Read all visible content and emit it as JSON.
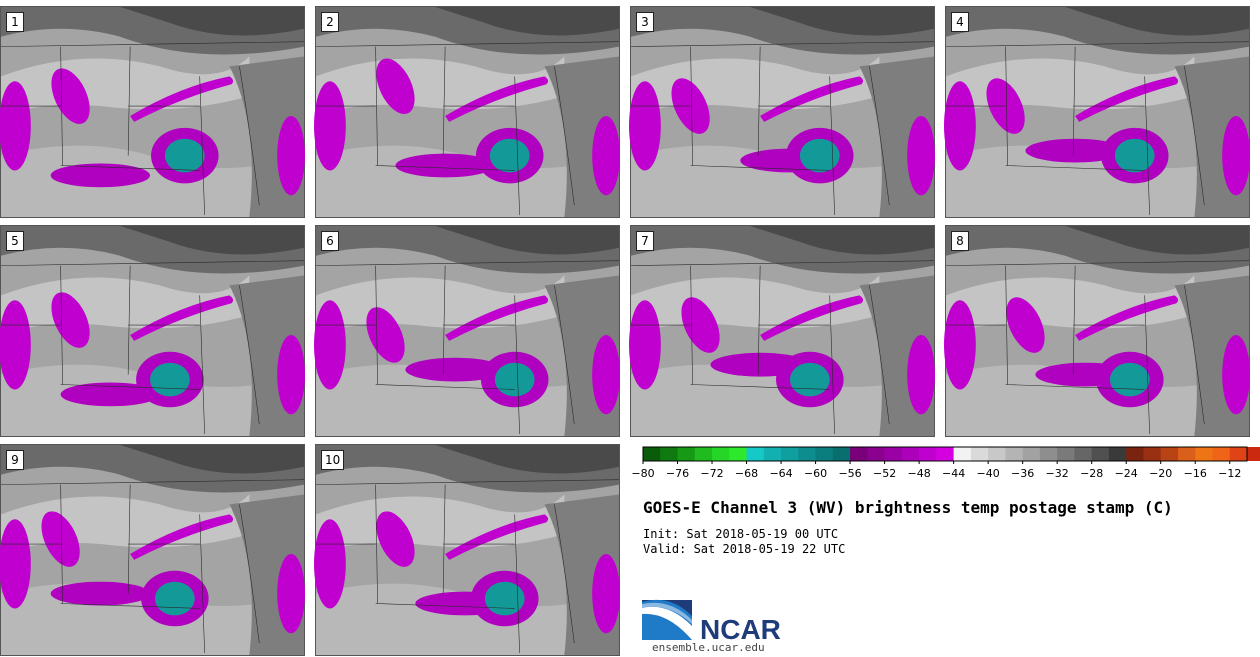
{
  "chart_data": {
    "type": "heatmap",
    "title": "GOES-E Channel 3 (WV) brightness temp postage stamp (C)",
    "init": "Init: Sat 2018-05-19 00 UTC",
    "valid": "Valid: Sat 2018-05-19 22 UTC",
    "units": "C",
    "members": [
      "1",
      "2",
      "3",
      "4",
      "5",
      "6",
      "7",
      "8",
      "9",
      "10"
    ],
    "colorbar": {
      "min": -80,
      "max": -10,
      "step": 2,
      "tick_labels": [
        "−80",
        "−76",
        "−72",
        "−68",
        "−64",
        "−60",
        "−56",
        "−52",
        "−48",
        "−44",
        "−40",
        "−36",
        "−32",
        "−28",
        "−24",
        "−20",
        "−16",
        "−12"
      ],
      "tick_values": [
        -80,
        -76,
        -72,
        -68,
        -64,
        -60,
        -56,
        -52,
        -48,
        -44,
        -40,
        -36,
        -32,
        -28,
        -24,
        -20,
        -16,
        -12
      ],
      "colors": [
        "#0a5c0a",
        "#0f7a0f",
        "#169a16",
        "#1fbb1f",
        "#26d626",
        "#2ee82e",
        "#15c9c9",
        "#12b0b0",
        "#0f9f9f",
        "#0d8d8d",
        "#0a7e7e",
        "#086e6e",
        "#7a007a",
        "#8a008f",
        "#9a00a6",
        "#ad00bb",
        "#c000cf",
        "#d400e0",
        "#f2f2f2",
        "#dadada",
        "#c8c8c8",
        "#b4b4b4",
        "#a2a2a2",
        "#8e8e8e",
        "#7a7a7a",
        "#666666",
        "#505050",
        "#3a3a3a",
        "#7a2410",
        "#9a3012",
        "#b84416",
        "#d8601a",
        "#ee7416",
        "#f06418",
        "#e04416",
        "#cc2a10"
      ]
    }
  },
  "logo": {
    "word": "NCAR",
    "url": "ensemble.ucar.edu",
    "colors": [
      "#1f3c7a",
      "#2f7bc8",
      "#8ab8e0"
    ]
  }
}
